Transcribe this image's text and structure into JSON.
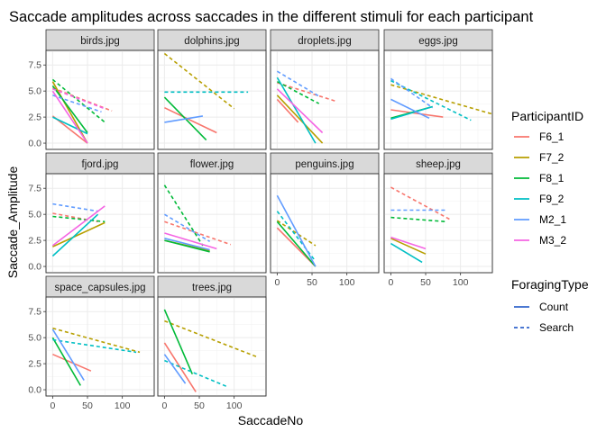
{
  "chart_data": {
    "type": "line",
    "title": "Saccade amplitudes across saccades in the different stimuli for each participant",
    "xlabel": "SaccadeNo",
    "ylabel": "Saccade_Amplitude",
    "xlim": [
      -5,
      145
    ],
    "ylim": [
      -0.6,
      8.9
    ],
    "x_ticks": [
      0,
      50,
      100
    ],
    "y_ticks": [
      0.0,
      2.5,
      5.0,
      7.5
    ],
    "y_tick_labels": [
      "0.0",
      "2.5",
      "5.0",
      "7.5"
    ],
    "grid": true,
    "facet_by": "stimulus",
    "legend_position": "right",
    "legends": [
      {
        "title": "ParticipantID",
        "entries": [
          {
            "name": "F6_1",
            "color": "#F8766D"
          },
          {
            "name": "F7_2",
            "color": "#B79F00"
          },
          {
            "name": "F8_1",
            "color": "#00BA38"
          },
          {
            "name": "F9_2",
            "color": "#00BFC4"
          },
          {
            "name": "M2_1",
            "color": "#619CFF"
          },
          {
            "name": "M3_2",
            "color": "#F564E3"
          }
        ]
      },
      {
        "title": "ForagingType",
        "entries": [
          {
            "name": "Count",
            "dash": "solid"
          },
          {
            "name": "Search",
            "dash": "dashed"
          }
        ]
      }
    ],
    "panels": [
      {
        "name": "birds.jpg",
        "series": [
          {
            "participant": "F6_1",
            "type": "Count",
            "x": [
              0,
              50
            ],
            "y": [
              2.6,
              0.0
            ]
          },
          {
            "participant": "F6_1",
            "type": "Search",
            "x": [
              0,
              85
            ],
            "y": [
              5.3,
              3.1
            ]
          },
          {
            "participant": "F7_2",
            "type": "Count",
            "x": [
              0,
              50
            ],
            "y": [
              5.9,
              0.0
            ]
          },
          {
            "participant": "F8_1",
            "type": "Count",
            "x": [
              0,
              50
            ],
            "y": [
              5.5,
              1.0
            ]
          },
          {
            "participant": "F8_1",
            "type": "Search",
            "x": [
              0,
              75
            ],
            "y": [
              6.1,
              2.0
            ]
          },
          {
            "participant": "F9_2",
            "type": "Count",
            "x": [
              0,
              50
            ],
            "y": [
              2.5,
              0.9
            ]
          },
          {
            "participant": "M2_1",
            "type": "Search",
            "x": [
              0,
              70
            ],
            "y": [
              4.6,
              3.0
            ]
          },
          {
            "participant": "M3_2",
            "type": "Count",
            "x": [
              0,
              50
            ],
            "y": [
              5.0,
              0.0
            ]
          },
          {
            "participant": "M3_2",
            "type": "Search",
            "x": [
              0,
              75
            ],
            "y": [
              5.2,
              3.3
            ]
          }
        ]
      },
      {
        "name": "dolphins.jpg",
        "series": [
          {
            "participant": "F6_1",
            "type": "Count",
            "x": [
              0,
              75
            ],
            "y": [
              3.4,
              1.0
            ]
          },
          {
            "participant": "F7_2",
            "type": "Search",
            "x": [
              0,
              100
            ],
            "y": [
              8.6,
              3.3
            ]
          },
          {
            "participant": "F8_1",
            "type": "Count",
            "x": [
              0,
              60
            ],
            "y": [
              4.4,
              0.3
            ]
          },
          {
            "participant": "F9_2",
            "type": "Search",
            "x": [
              0,
              120
            ],
            "y": [
              4.9,
              4.9
            ]
          },
          {
            "participant": "M2_1",
            "type": "Count",
            "x": [
              0,
              55
            ],
            "y": [
              2.0,
              2.6
            ]
          }
        ]
      },
      {
        "name": "droplets.jpg",
        "series": [
          {
            "participant": "F6_1",
            "type": "Count",
            "x": [
              0,
              30
            ],
            "y": [
              4.2,
              2.0
            ]
          },
          {
            "participant": "F6_1",
            "type": "Search",
            "x": [
              0,
              85
            ],
            "y": [
              5.8,
              4.0
            ]
          },
          {
            "participant": "F7_2",
            "type": "Count",
            "x": [
              0,
              65
            ],
            "y": [
              4.6,
              0.0
            ]
          },
          {
            "participant": "F8_1",
            "type": "Search",
            "x": [
              0,
              60
            ],
            "y": [
              5.9,
              3.8
            ]
          },
          {
            "participant": "F9_2",
            "type": "Count",
            "x": [
              0,
              55
            ],
            "y": [
              6.3,
              0.0
            ]
          },
          {
            "participant": "M2_1",
            "type": "Search",
            "x": [
              0,
              60
            ],
            "y": [
              6.9,
              4.5
            ]
          },
          {
            "participant": "M3_2",
            "type": "Count",
            "x": [
              0,
              65
            ],
            "y": [
              5.2,
              1.0
            ]
          }
        ]
      },
      {
        "name": "eggs.jpg",
        "series": [
          {
            "participant": "F6_1",
            "type": "Count",
            "x": [
              0,
              75
            ],
            "y": [
              3.2,
              2.5
            ]
          },
          {
            "participant": "F7_2",
            "type": "Search",
            "x": [
              0,
              145
            ],
            "y": [
              5.6,
              2.8
            ]
          },
          {
            "participant": "F8_1",
            "type": "Count",
            "x": [
              0,
              60
            ],
            "y": [
              2.4,
              3.5
            ]
          },
          {
            "participant": "F9_2",
            "type": "Count",
            "x": [
              0,
              60
            ],
            "y": [
              2.3,
              3.5
            ]
          },
          {
            "participant": "F9_2",
            "type": "Search",
            "x": [
              0,
              115
            ],
            "y": [
              6.0,
              2.2
            ]
          },
          {
            "participant": "M2_1",
            "type": "Count",
            "x": [
              0,
              55
            ],
            "y": [
              4.2,
              2.4
            ]
          },
          {
            "participant": "M2_1",
            "type": "Search",
            "x": [
              0,
              60
            ],
            "y": [
              6.2,
              3.4
            ]
          }
        ]
      },
      {
        "name": "fjord.jpg",
        "series": [
          {
            "participant": "F6_1",
            "type": "Search",
            "x": [
              0,
              65
            ],
            "y": [
              5.1,
              4.3
            ]
          },
          {
            "participant": "F7_2",
            "type": "Count",
            "x": [
              0,
              75
            ],
            "y": [
              1.9,
              4.2
            ]
          },
          {
            "participant": "F8_1",
            "type": "Search",
            "x": [
              0,
              75
            ],
            "y": [
              4.8,
              4.3
            ]
          },
          {
            "participant": "F9_2",
            "type": "Count",
            "x": [
              0,
              65
            ],
            "y": [
              1.0,
              5.0
            ]
          },
          {
            "participant": "M2_1",
            "type": "Search",
            "x": [
              0,
              65
            ],
            "y": [
              6.0,
              5.3
            ]
          },
          {
            "participant": "M3_2",
            "type": "Count",
            "x": [
              0,
              75
            ],
            "y": [
              2.0,
              5.8
            ]
          }
        ]
      },
      {
        "name": "flower.jpg",
        "series": [
          {
            "participant": "F6_1",
            "type": "Search",
            "x": [
              0,
              95
            ],
            "y": [
              4.3,
              2.1
            ]
          },
          {
            "participant": "F7_2",
            "type": "Count",
            "x": [
              0,
              65
            ],
            "y": [
              2.5,
              1.5
            ]
          },
          {
            "participant": "F8_1",
            "type": "Count",
            "x": [
              0,
              65
            ],
            "y": [
              2.5,
              1.4
            ]
          },
          {
            "participant": "F8_1",
            "type": "Search",
            "x": [
              0,
              55
            ],
            "y": [
              7.8,
              2.0
            ]
          },
          {
            "participant": "M2_1",
            "type": "Count",
            "x": [
              0,
              65
            ],
            "y": [
              2.7,
              1.6
            ]
          },
          {
            "participant": "M2_1",
            "type": "Search",
            "x": [
              0,
              65
            ],
            "y": [
              5.0,
              2.4
            ]
          },
          {
            "participant": "M3_2",
            "type": "Count",
            "x": [
              0,
              75
            ],
            "y": [
              3.2,
              1.7
            ]
          }
        ]
      },
      {
        "name": "penguins.jpg",
        "series": [
          {
            "participant": "F6_1",
            "type": "Count",
            "x": [
              0,
              55
            ],
            "y": [
              3.7,
              0.0
            ]
          },
          {
            "participant": "F7_2",
            "type": "Search",
            "x": [
              0,
              55
            ],
            "y": [
              4.4,
              2.0
            ]
          },
          {
            "participant": "F8_1",
            "type": "Count",
            "x": [
              0,
              55
            ],
            "y": [
              4.3,
              0.0
            ]
          },
          {
            "participant": "F9_2",
            "type": "Search",
            "x": [
              0,
              55
            ],
            "y": [
              5.3,
              0.5
            ]
          },
          {
            "participant": "M2_1",
            "type": "Count",
            "x": [
              0,
              55
            ],
            "y": [
              6.8,
              0.0
            ]
          }
        ]
      },
      {
        "name": "sheep.jpg",
        "series": [
          {
            "participant": "F6_1",
            "type": "Search",
            "x": [
              0,
              85
            ],
            "y": [
              7.6,
              4.5
            ]
          },
          {
            "participant": "F7_2",
            "type": "Count",
            "x": [
              0,
              50
            ],
            "y": [
              2.7,
              1.2
            ]
          },
          {
            "participant": "F8_1",
            "type": "Search",
            "x": [
              0,
              80
            ],
            "y": [
              4.7,
              4.3
            ]
          },
          {
            "participant": "F9_2",
            "type": "Count",
            "x": [
              0,
              45
            ],
            "y": [
              2.2,
              0.4
            ]
          },
          {
            "participant": "M2_1",
            "type": "Search",
            "x": [
              0,
              80
            ],
            "y": [
              5.4,
              5.4
            ]
          },
          {
            "participant": "M3_2",
            "type": "Count",
            "x": [
              0,
              50
            ],
            "y": [
              2.8,
              1.7
            ]
          }
        ]
      },
      {
        "name": "space_capsules.jpg",
        "series": [
          {
            "participant": "F6_1",
            "type": "Count",
            "x": [
              0,
              55
            ],
            "y": [
              3.4,
              1.8
            ]
          },
          {
            "participant": "F7_2",
            "type": "Search",
            "x": [
              0,
              125
            ],
            "y": [
              5.9,
              3.6
            ]
          },
          {
            "participant": "F8_1",
            "type": "Count",
            "x": [
              0,
              40
            ],
            "y": [
              5.0,
              0.4
            ]
          },
          {
            "participant": "F9_2",
            "type": "Search",
            "x": [
              0,
              120
            ],
            "y": [
              4.8,
              3.6
            ]
          },
          {
            "participant": "M2_1",
            "type": "Count",
            "x": [
              0,
              45
            ],
            "y": [
              5.8,
              0.9
            ]
          }
        ]
      },
      {
        "name": "trees.jpg",
        "series": [
          {
            "participant": "F6_1",
            "type": "Count",
            "x": [
              0,
              45
            ],
            "y": [
              4.5,
              -0.2
            ]
          },
          {
            "participant": "F7_2",
            "type": "Search",
            "x": [
              0,
              135
            ],
            "y": [
              6.6,
              3.1
            ]
          },
          {
            "participant": "F8_1",
            "type": "Count",
            "x": [
              0,
              40
            ],
            "y": [
              7.7,
              1.5
            ]
          },
          {
            "participant": "F9_2",
            "type": "Search",
            "x": [
              0,
              90
            ],
            "y": [
              2.8,
              0.3
            ]
          },
          {
            "participant": "M2_1",
            "type": "Count",
            "x": [
              0,
              30
            ],
            "y": [
              3.4,
              0.6
            ]
          }
        ]
      }
    ]
  }
}
